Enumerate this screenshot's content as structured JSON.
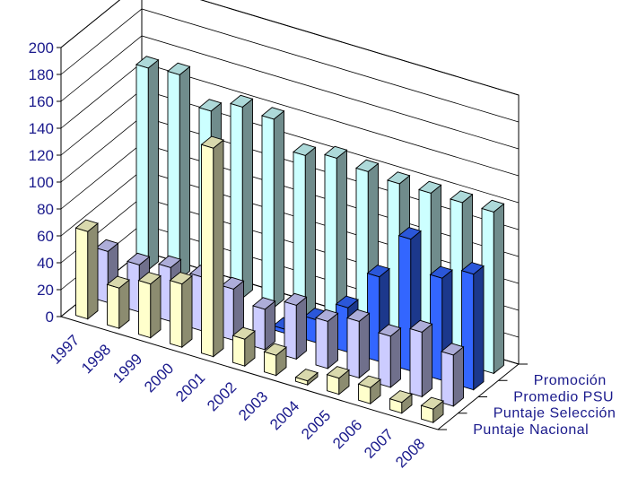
{
  "chart_data": {
    "type": "bar",
    "categories": [
      "1997",
      "1998",
      "1999",
      "2000",
      "2001",
      "2002",
      "2003",
      "2004",
      "2005",
      "2006",
      "2007",
      "2008"
    ],
    "y_ticks": [
      "0",
      "20",
      "40",
      "60",
      "80",
      "100",
      "120",
      "140",
      "160",
      "180",
      "200"
    ],
    "ylim": [
      0,
      200
    ],
    "grid": true,
    "legend": "depth-axis",
    "series": [
      {
        "name": "Puntaje Nacional",
        "color": "#ffffcc",
        "values": [
          65,
          30,
          40,
          47,
          155,
          20,
          15,
          3,
          12,
          12,
          8,
          10
        ]
      },
      {
        "name": "Puntaje Selección",
        "color": "#ccccff",
        "values": [
          38,
          35,
          40,
          40,
          38,
          30,
          40,
          35,
          42,
          38,
          48,
          38
        ]
      },
      {
        "name": "Promedio PSU",
        "color": "#3366ff",
        "values": [
          0,
          0,
          0,
          0,
          0,
          3,
          17,
          33,
          63,
          98,
          76,
          86
        ]
      },
      {
        "name": "Promoción",
        "color": "#ccffff",
        "values": [
          150,
          152,
          132,
          142,
          140,
          120,
          125,
          122,
          120,
          120,
          120,
          120
        ]
      }
    ]
  }
}
